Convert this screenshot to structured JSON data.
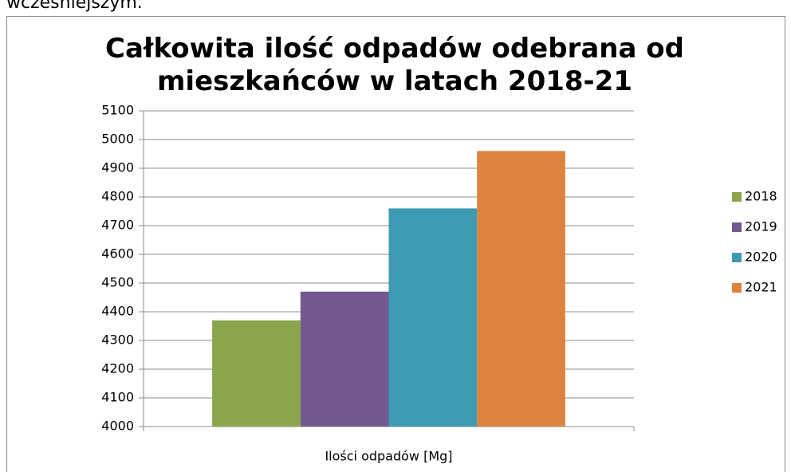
{
  "context_text": "wcześniejszym.",
  "chart_data": {
    "type": "bar",
    "title": "Całkowita ilość odpadów odebrana od mieszkańców w latach 2018-21",
    "categories": [
      "Ilości odpadów [Mg]"
    ],
    "series": [
      {
        "name": "2018",
        "color": "#8aa64c",
        "values": [
          4370
        ]
      },
      {
        "name": "2019",
        "color": "#72598f",
        "values": [
          4470
        ]
      },
      {
        "name": "2020",
        "color": "#3e9ab0",
        "values": [
          4760
        ]
      },
      {
        "name": "2021",
        "color": "#dc843f",
        "values": [
          4960
        ]
      }
    ],
    "ylim": [
      4000,
      5100
    ],
    "yticks": [
      4000,
      4100,
      4200,
      4300,
      4400,
      4500,
      4600,
      4700,
      4800,
      4900,
      5000,
      5100
    ],
    "grid": true,
    "legend": "right"
  }
}
